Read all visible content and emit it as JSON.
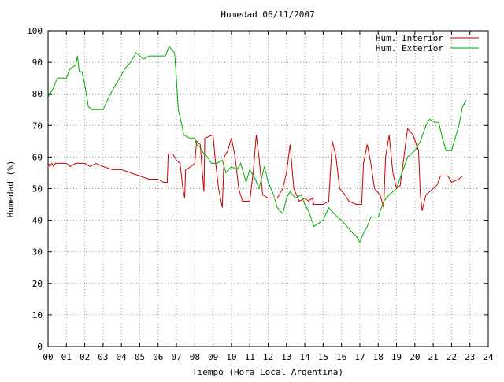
{
  "chart_data": {
    "type": "line",
    "title": "Humedad 06/11/2007",
    "xlabel": "Tiempo (Hora Local Argentina)",
    "ylabel": "Humedad (%)",
    "xlim": [
      0,
      24
    ],
    "ylim": [
      0,
      100
    ],
    "x_ticks": [
      "00",
      "01",
      "02",
      "03",
      "04",
      "05",
      "06",
      "07",
      "08",
      "09",
      "10",
      "11",
      "12",
      "13",
      "14",
      "15",
      "16",
      "17",
      "18",
      "19",
      "20",
      "21",
      "22",
      "23",
      "24"
    ],
    "y_ticks": [
      "0",
      "10",
      "20",
      "30",
      "40",
      "50",
      "60",
      "70",
      "80",
      "90",
      "100"
    ],
    "grid": true,
    "legend_position": "top-right",
    "colors": {
      "interior": "#cc0000",
      "exterior": "#00aa00"
    },
    "series": [
      {
        "name": "Hum. Interior",
        "color": "#cc0000",
        "points": [
          [
            0,
            58
          ],
          [
            0.1,
            57
          ],
          [
            0.2,
            58
          ],
          [
            0.3,
            57
          ],
          [
            0.4,
            58
          ],
          [
            0.5,
            58
          ],
          [
            1.0,
            58
          ],
          [
            1.2,
            57
          ],
          [
            1.5,
            58
          ],
          [
            2.0,
            58
          ],
          [
            2.3,
            57
          ],
          [
            2.6,
            58
          ],
          [
            3.0,
            57
          ],
          [
            3.5,
            56
          ],
          [
            4.0,
            56
          ],
          [
            4.5,
            55
          ],
          [
            5.0,
            54
          ],
          [
            5.5,
            53
          ],
          [
            6.0,
            53
          ],
          [
            6.3,
            52
          ],
          [
            6.5,
            52
          ],
          [
            6.55,
            61
          ],
          [
            6.8,
            61
          ],
          [
            7.0,
            59
          ],
          [
            7.2,
            58
          ],
          [
            7.35,
            50
          ],
          [
            7.45,
            47
          ],
          [
            7.5,
            56
          ],
          [
            7.8,
            57
          ],
          [
            8.0,
            58
          ],
          [
            8.1,
            65
          ],
          [
            8.3,
            64
          ],
          [
            8.4,
            56
          ],
          [
            8.5,
            49
          ],
          [
            8.55,
            66
          ],
          [
            9.0,
            67
          ],
          [
            9.1,
            60
          ],
          [
            9.3,
            50
          ],
          [
            9.5,
            44
          ],
          [
            9.6,
            60
          ],
          [
            9.8,
            62
          ],
          [
            10.0,
            66
          ],
          [
            10.2,
            60
          ],
          [
            10.4,
            50
          ],
          [
            10.6,
            46
          ],
          [
            11.0,
            46
          ],
          [
            11.2,
            56
          ],
          [
            11.35,
            67
          ],
          [
            11.5,
            60
          ],
          [
            11.7,
            48
          ],
          [
            12.0,
            47
          ],
          [
            12.5,
            47
          ],
          [
            12.8,
            50
          ],
          [
            13.0,
            55
          ],
          [
            13.2,
            64
          ],
          [
            13.4,
            50
          ],
          [
            13.7,
            46
          ],
          [
            14.0,
            47
          ],
          [
            14.2,
            46
          ],
          [
            14.4,
            47
          ],
          [
            14.5,
            45
          ],
          [
            15.0,
            45
          ],
          [
            15.3,
            46
          ],
          [
            15.5,
            65
          ],
          [
            15.7,
            60
          ],
          [
            15.9,
            50
          ],
          [
            16.2,
            48
          ],
          [
            16.4,
            46
          ],
          [
            16.8,
            45
          ],
          [
            17.1,
            45
          ],
          [
            17.2,
            58
          ],
          [
            17.4,
            64
          ],
          [
            17.6,
            58
          ],
          [
            17.8,
            50
          ],
          [
            18.1,
            48
          ],
          [
            18.3,
            44
          ],
          [
            18.4,
            60
          ],
          [
            18.6,
            67
          ],
          [
            18.8,
            55
          ],
          [
            19.0,
            50
          ],
          [
            19.2,
            51
          ],
          [
            19.4,
            60
          ],
          [
            19.6,
            69
          ],
          [
            19.9,
            67
          ],
          [
            20.2,
            62
          ],
          [
            20.3,
            48
          ],
          [
            20.4,
            43
          ],
          [
            20.6,
            48
          ],
          [
            21.0,
            50
          ],
          [
            21.2,
            51
          ],
          [
            21.4,
            54
          ],
          [
            21.8,
            54
          ],
          [
            22.0,
            52
          ],
          [
            22.4,
            53
          ],
          [
            22.6,
            54
          ]
        ]
      },
      {
        "name": "Hum. Exterior",
        "color": "#00aa00",
        "points": [
          [
            0,
            79
          ],
          [
            0.3,
            82
          ],
          [
            0.5,
            85
          ],
          [
            1.0,
            85
          ],
          [
            1.2,
            88
          ],
          [
            1.5,
            89
          ],
          [
            1.6,
            92
          ],
          [
            1.7,
            87
          ],
          [
            1.85,
            87
          ],
          [
            2.0,
            83
          ],
          [
            2.2,
            76
          ],
          [
            2.4,
            75
          ],
          [
            2.8,
            75
          ],
          [
            3.0,
            75
          ],
          [
            3.4,
            80
          ],
          [
            3.8,
            84
          ],
          [
            4.2,
            88
          ],
          [
            4.5,
            90
          ],
          [
            4.8,
            93
          ],
          [
            5.2,
            91
          ],
          [
            5.5,
            92
          ],
          [
            6.0,
            92
          ],
          [
            6.4,
            92
          ],
          [
            6.6,
            95
          ],
          [
            6.9,
            93
          ],
          [
            7.0,
            85
          ],
          [
            7.1,
            75
          ],
          [
            7.3,
            70
          ],
          [
            7.4,
            67
          ],
          [
            7.7,
            66
          ],
          [
            8.0,
            66
          ],
          [
            8.1,
            64
          ],
          [
            8.3,
            63
          ],
          [
            8.5,
            61
          ],
          [
            8.7,
            60
          ],
          [
            8.9,
            58
          ],
          [
            9.2,
            58
          ],
          [
            9.5,
            59
          ],
          [
            9.7,
            55
          ],
          [
            10.0,
            57
          ],
          [
            10.3,
            56
          ],
          [
            10.5,
            58
          ],
          [
            10.8,
            52
          ],
          [
            11.0,
            56
          ],
          [
            11.3,
            53
          ],
          [
            11.5,
            50
          ],
          [
            11.8,
            57
          ],
          [
            12.0,
            52
          ],
          [
            12.3,
            48
          ],
          [
            12.5,
            44
          ],
          [
            12.8,
            42
          ],
          [
            13.0,
            47
          ],
          [
            13.2,
            49
          ],
          [
            13.5,
            47
          ],
          [
            13.8,
            48
          ],
          [
            14.0,
            45
          ],
          [
            14.2,
            43
          ],
          [
            14.5,
            38
          ],
          [
            15.0,
            40
          ],
          [
            15.3,
            44
          ],
          [
            15.6,
            42
          ],
          [
            15.8,
            41
          ],
          [
            16.0,
            40
          ],
          [
            16.3,
            38
          ],
          [
            16.6,
            36
          ],
          [
            16.8,
            35
          ],
          [
            17.0,
            33
          ],
          [
            17.2,
            36
          ],
          [
            17.4,
            38
          ],
          [
            17.6,
            41
          ],
          [
            18.0,
            41
          ],
          [
            18.3,
            46
          ],
          [
            18.6,
            48
          ],
          [
            19.0,
            50
          ],
          [
            19.3,
            55
          ],
          [
            19.6,
            60
          ],
          [
            20.0,
            62
          ],
          [
            20.3,
            65
          ],
          [
            20.6,
            70
          ],
          [
            20.8,
            72
          ],
          [
            21.1,
            71
          ],
          [
            21.3,
            71
          ],
          [
            21.5,
            66
          ],
          [
            21.7,
            62
          ],
          [
            22.0,
            62
          ],
          [
            22.2,
            66
          ],
          [
            22.4,
            70
          ],
          [
            22.6,
            76
          ],
          [
            22.8,
            78
          ]
        ]
      }
    ]
  }
}
